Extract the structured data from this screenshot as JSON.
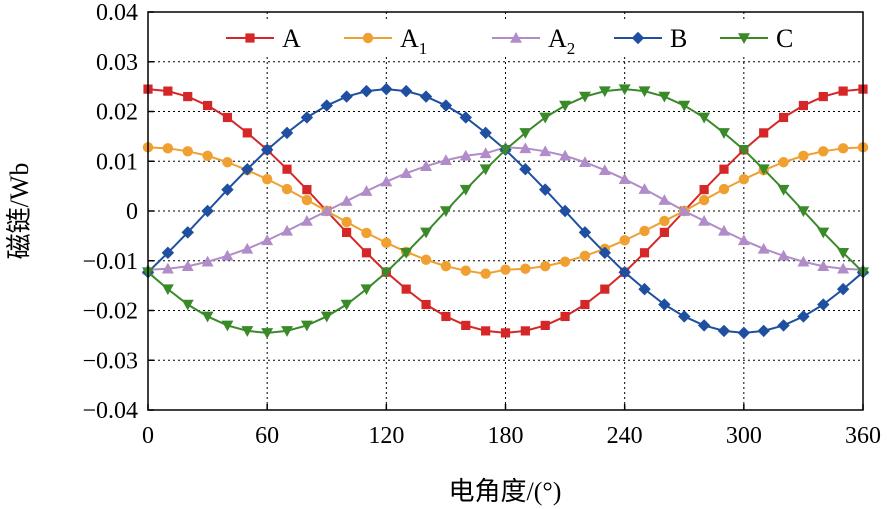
{
  "chart_data": {
    "type": "line",
    "xlabel": "电角度/(°)",
    "ylabel": "磁链/Wb",
    "xlim": [
      0,
      360
    ],
    "ylim": [
      -0.04,
      0.04
    ],
    "xticks": [
      0,
      60,
      120,
      180,
      240,
      300,
      360
    ],
    "yticks": [
      0.04,
      0.03,
      0.02,
      0.01,
      0,
      -0.01,
      -0.02,
      -0.03,
      -0.04
    ],
    "ytick_labels": [
      "0.04",
      "0.03",
      "0.02",
      "0.01",
      "0",
      "−0.01",
      "−0.02",
      "−0.03",
      "−0.04"
    ],
    "grid": true,
    "legend_position": "top",
    "x": [
      0,
      10,
      20,
      30,
      40,
      50,
      60,
      70,
      80,
      90,
      100,
      110,
      120,
      130,
      140,
      150,
      160,
      170,
      180,
      190,
      200,
      210,
      220,
      230,
      240,
      250,
      260,
      270,
      280,
      290,
      300,
      310,
      320,
      330,
      340,
      350,
      360
    ],
    "series": [
      {
        "name": "A",
        "sub": "",
        "color": "#d62728",
        "marker": "square",
        "values": [
          0.0245,
          0.0241,
          0.023,
          0.0212,
          0.0188,
          0.0157,
          0.0123,
          0.0084,
          0.0043,
          0.0,
          -0.0043,
          -0.0084,
          -0.0123,
          -0.0157,
          -0.0188,
          -0.0212,
          -0.023,
          -0.0241,
          -0.0245,
          -0.0241,
          -0.023,
          -0.0212,
          -0.0188,
          -0.0157,
          -0.0123,
          -0.0084,
          -0.0043,
          0.0,
          0.0043,
          0.0084,
          0.0123,
          0.0157,
          0.0188,
          0.0212,
          0.023,
          0.0241,
          0.0245
        ]
      },
      {
        "name": "A",
        "sub": "1",
        "color": "#f0a030",
        "marker": "circle",
        "values": [
          0.0128,
          0.0126,
          0.012,
          0.0111,
          0.0098,
          0.0082,
          0.0064,
          0.0044,
          0.0022,
          0.0,
          -0.0022,
          -0.0044,
          -0.0064,
          -0.0082,
          -0.0098,
          -0.0111,
          -0.012,
          -0.0126,
          -0.0118,
          -0.0116,
          -0.0111,
          -0.0102,
          -0.009,
          -0.0076,
          -0.0059,
          -0.004,
          -0.002,
          0.0,
          0.0022,
          0.0044,
          0.0064,
          0.0082,
          0.0098,
          0.0111,
          0.012,
          0.0126,
          0.0128
        ]
      },
      {
        "name": "A",
        "sub": "2",
        "color": "#b08cc8",
        "marker": "triangle-up",
        "values": [
          -0.0118,
          -0.0116,
          -0.0111,
          -0.0102,
          -0.009,
          -0.0076,
          -0.0059,
          -0.004,
          -0.002,
          0.0,
          0.002,
          0.004,
          0.0059,
          0.0076,
          0.009,
          0.0102,
          0.0111,
          0.0116,
          0.0128,
          0.0126,
          0.012,
          0.0111,
          0.0098,
          0.0082,
          0.0064,
          0.0044,
          0.0022,
          0.0,
          -0.002,
          -0.004,
          -0.0059,
          -0.0076,
          -0.009,
          -0.0102,
          -0.0111,
          -0.0116,
          -0.0118
        ]
      },
      {
        "name": "B",
        "sub": "",
        "color": "#1f4fa0",
        "marker": "diamond",
        "values": [
          -0.0123,
          -0.0084,
          -0.0043,
          0.0,
          0.0043,
          0.0084,
          0.0123,
          0.0157,
          0.0188,
          0.0212,
          0.023,
          0.0241,
          0.0245,
          0.0241,
          0.023,
          0.0212,
          0.0188,
          0.0157,
          0.0123,
          0.0084,
          0.0043,
          0.0,
          -0.0043,
          -0.0084,
          -0.0123,
          -0.0157,
          -0.0188,
          -0.0212,
          -0.023,
          -0.0241,
          -0.0245,
          -0.0241,
          -0.023,
          -0.0212,
          -0.0188,
          -0.0157,
          -0.0123
        ]
      },
      {
        "name": "C",
        "sub": "",
        "color": "#3a8a2a",
        "marker": "triangle-down",
        "values": [
          -0.0123,
          -0.0157,
          -0.0188,
          -0.0212,
          -0.023,
          -0.0241,
          -0.0245,
          -0.0241,
          -0.023,
          -0.0212,
          -0.0188,
          -0.0157,
          -0.0123,
          -0.0084,
          -0.0043,
          0.0,
          0.0043,
          0.0084,
          0.0123,
          0.0157,
          0.0188,
          0.0212,
          0.023,
          0.0241,
          0.0245,
          0.0241,
          0.023,
          0.0212,
          0.0188,
          0.0157,
          0.0123,
          0.0084,
          0.0043,
          0.0,
          -0.0043,
          -0.0084,
          -0.0123
        ]
      }
    ]
  }
}
